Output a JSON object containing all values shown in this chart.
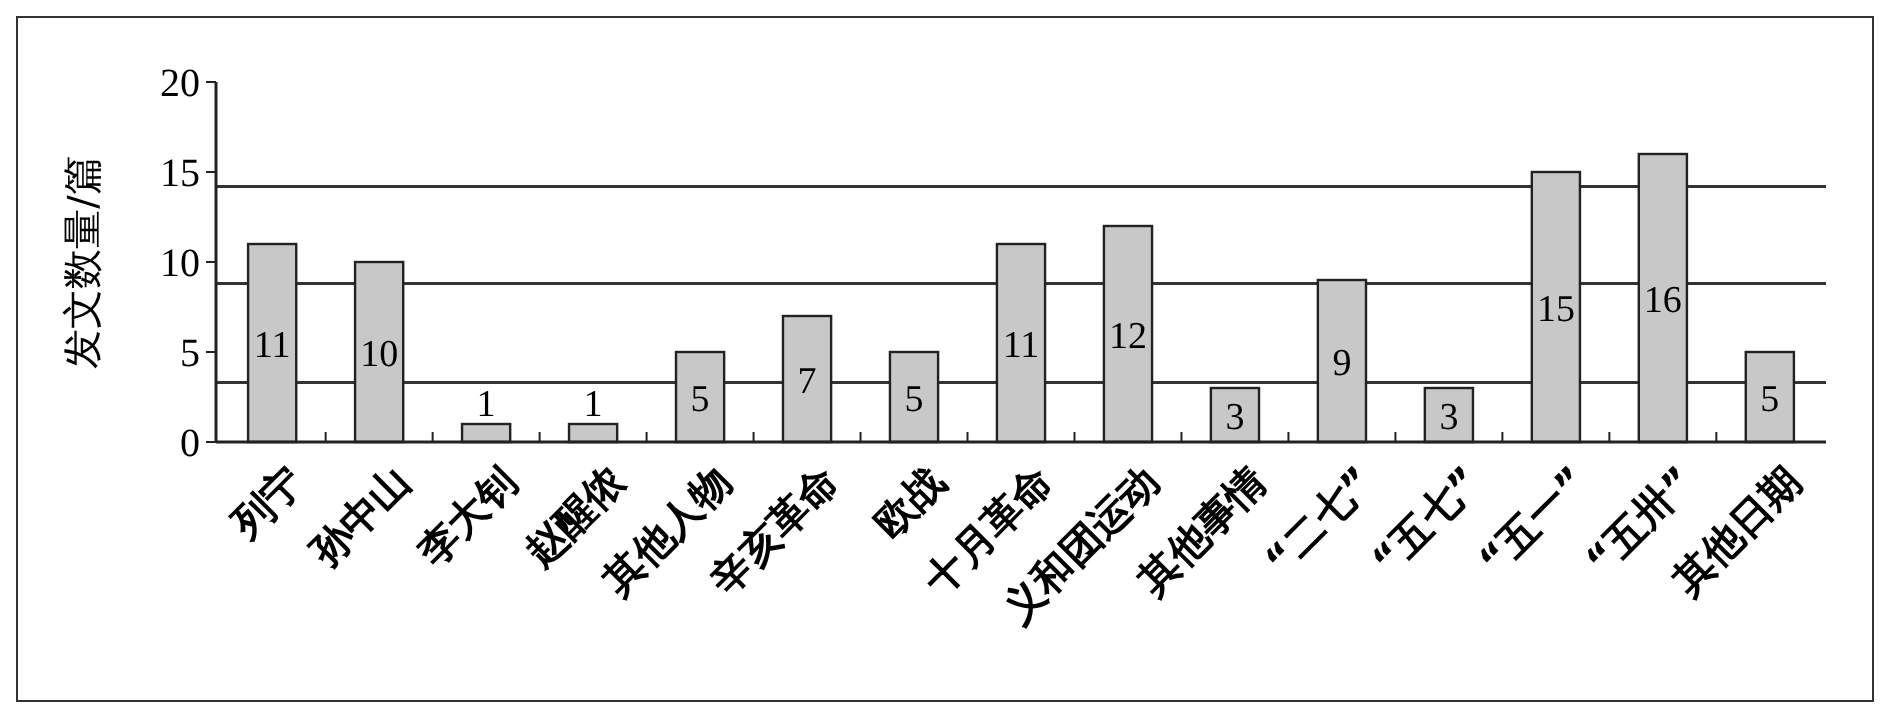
{
  "chart_data": {
    "type": "bar",
    "ylabel": "发文数量/篇",
    "categories": [
      "列宁",
      "孙中山",
      "李大钊",
      "赵醒侬",
      "其他人物",
      "辛亥革命",
      "欧战",
      "十月革命",
      "义和团运动",
      "其他事情",
      "“二七”",
      "“五七”",
      "“五一”",
      "“五卅”",
      "其他日期"
    ],
    "values": [
      11,
      10,
      1,
      1,
      5,
      7,
      5,
      11,
      12,
      3,
      9,
      3,
      15,
      16,
      5
    ],
    "color": "#c8c8c8",
    "ylim": [
      0,
      20
    ],
    "yticks": [
      0,
      5,
      10,
      15,
      20
    ],
    "data_labels": true,
    "grid": false,
    "ref_lines": [
      {
        "axis": "y",
        "value": 3.3
      },
      {
        "axis": "y",
        "value": 8.8
      },
      {
        "axis": "y",
        "value": 14.2
      }
    ]
  }
}
